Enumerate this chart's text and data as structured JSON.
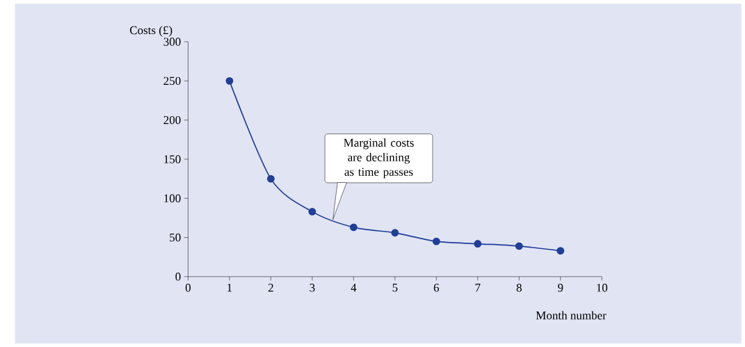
{
  "chart_data": {
    "type": "line",
    "xlabel": "Month number",
    "ylabel": "Costs (£)",
    "x": [
      1,
      2,
      3,
      4,
      5,
      6,
      7,
      8,
      9
    ],
    "values": [
      250,
      125,
      83,
      63,
      56,
      45,
      42,
      39,
      33
    ],
    "color": "#1f3f99",
    "marker": "circle",
    "line_style": "solid",
    "xlim": [
      0,
      10
    ],
    "ylim": [
      0,
      300
    ],
    "xticks": [
      0,
      1,
      2,
      3,
      4,
      5,
      6,
      7,
      8,
      9,
      10
    ],
    "yticks": [
      0,
      50,
      100,
      150,
      200,
      250,
      300
    ],
    "annotations": [
      {
        "text": "Marginal costs are declining as time passes",
        "x": 3.5,
        "y": 73
      }
    ]
  }
}
